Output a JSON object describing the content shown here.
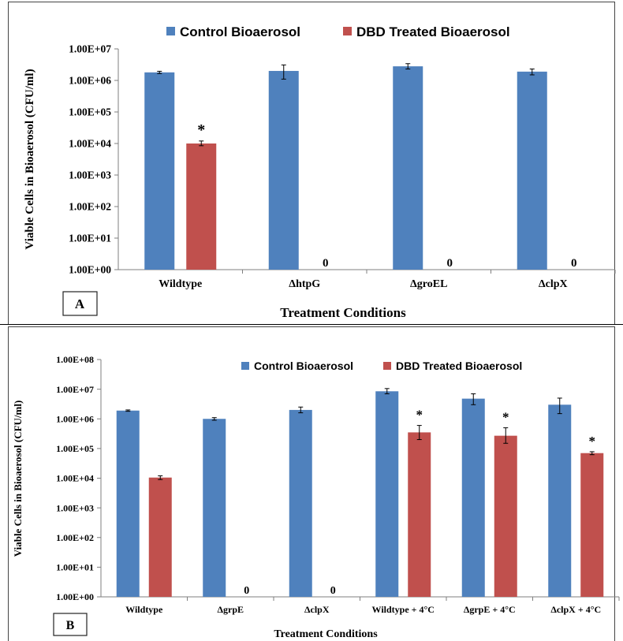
{
  "colors": {
    "control": "#4f81bd",
    "dbd": "#c0504d",
    "axis": "#7f7f7f"
  },
  "legend": {
    "control": "Control Bioaerosol",
    "dbd": "DBD Treated Bioaerosol"
  },
  "chart_data": [
    {
      "type": "bar",
      "panel_label": "A",
      "xlabel": "Treatment Conditions",
      "ylabel": "Viable Cells in Bioaerosol (CFU/ml)",
      "yscale": "log",
      "ylim": [
        1,
        10000000
      ],
      "yticks": [
        "1.00E+00",
        "1.00E+01",
        "1.00E+02",
        "1.00E+03",
        "1.00E+04",
        "1.00E+05",
        "1.00E+06",
        "1.00E+07"
      ],
      "categories": [
        "Wildtype",
        "ΔhtpG",
        "ΔgroEL",
        "ΔclpX"
      ],
      "series": [
        {
          "name": "Control Bioaerosol",
          "values": [
            1800000,
            2000000,
            2800000,
            1900000
          ],
          "err_high": [
            1950000,
            3100000,
            3400000,
            2300000
          ],
          "err_low": [
            1650000,
            1100000,
            2300000,
            1500000
          ],
          "labels": [
            "",
            "",
            "",
            ""
          ]
        },
        {
          "name": "DBD Treated Bioaerosol",
          "values": [
            10000,
            0,
            0,
            0
          ],
          "err_high": [
            12000,
            0,
            0,
            0
          ],
          "err_low": [
            8500,
            0,
            0,
            0
          ],
          "labels": [
            "*",
            "0",
            "0",
            "0"
          ]
        }
      ],
      "grid": false,
      "legend_position": "top"
    },
    {
      "type": "bar",
      "panel_label": "B",
      "xlabel": "Treatment Conditions",
      "ylabel": "Viable Cells in Bioaerosol (CFU/ml)",
      "yscale": "log",
      "ylim": [
        1,
        100000000
      ],
      "yticks": [
        "1.00E+00",
        "1.00E+01",
        "1.00E+02",
        "1.00E+03",
        "1.00E+04",
        "1.00E+05",
        "1.00E+06",
        "1.00E+07",
        "1.00E+08"
      ],
      "categories": [
        "Wildtype",
        "ΔgrpE",
        "ΔclpX",
        "Wildtype + 4°C",
        "ΔgrpE  + 4°C",
        "ΔclpX + 4°C"
      ],
      "series": [
        {
          "name": "Control Bioaerosol",
          "values": [
            1900000,
            1000000,
            2000000,
            8500000,
            4800000,
            3000000
          ],
          "err_high": [
            2000000,
            1100000,
            2500000,
            10500000,
            7000000,
            5000000
          ],
          "err_low": [
            1800000,
            900000,
            1600000,
            7000000,
            3000000,
            1500000
          ],
          "labels": [
            "",
            "",
            "",
            "",
            "",
            ""
          ]
        },
        {
          "name": "DBD Treated Bioaerosol",
          "values": [
            10500,
            0,
            0,
            350000,
            270000,
            70000
          ],
          "err_high": [
            12000,
            0,
            0,
            600000,
            500000,
            78000
          ],
          "err_low": [
            9000,
            0,
            0,
            200000,
            150000,
            62000
          ],
          "labels": [
            "",
            "0",
            "0",
            "*",
            "*",
            "*"
          ]
        }
      ],
      "grid": false,
      "legend_position": "top"
    }
  ]
}
